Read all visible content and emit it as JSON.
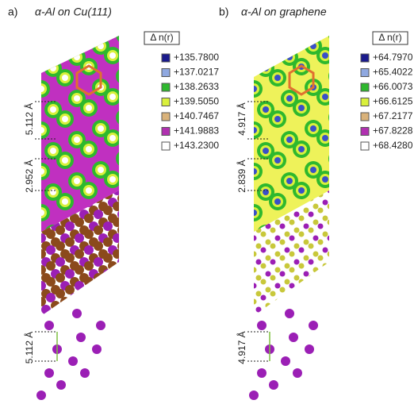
{
  "panels": [
    {
      "label": "a)",
      "title": "α-Al on Cu(111)",
      "legend": {
        "title": "Δ n(r)",
        "entries": [
          {
            "label": "+135.7800",
            "color": "#1a1a8c"
          },
          {
            "label": "+137.0217",
            "color": "#8fa8e0"
          },
          {
            "label": "+138.2633",
            "color": "#2eb82e"
          },
          {
            "label": "+139.5050",
            "color": "#d9f03c"
          },
          {
            "label": "+140.7467",
            "color": "#d9b27a"
          },
          {
            "label": "+141.9883",
            "color": "#b030b0"
          },
          {
            "label": "+143.2300",
            "color": "#ffffff"
          }
        ]
      },
      "dimensions": [
        "5.112 Å",
        "2.952 Å",
        "5.112 Å"
      ]
    },
    {
      "label": "b)",
      "title": "α-Al on graphene",
      "legend": {
        "title": "Δ n(r)",
        "entries": [
          {
            "label": "+64.7970",
            "color": "#1a1a8c"
          },
          {
            "label": "+65.4022",
            "color": "#8fa8e0"
          },
          {
            "label": "+66.0073",
            "color": "#2eb82e"
          },
          {
            "label": "+66.6125",
            "color": "#d9f03c"
          },
          {
            "label": "+67.2177",
            "color": "#d9b27a"
          },
          {
            "label": "+67.8228",
            "color": "#b030b0"
          },
          {
            "label": "+68.4280",
            "color": "#ffffff"
          }
        ]
      },
      "dimensions": [
        "4.917 Å",
        "2.839 Å",
        "4.917 Å"
      ]
    }
  ]
}
